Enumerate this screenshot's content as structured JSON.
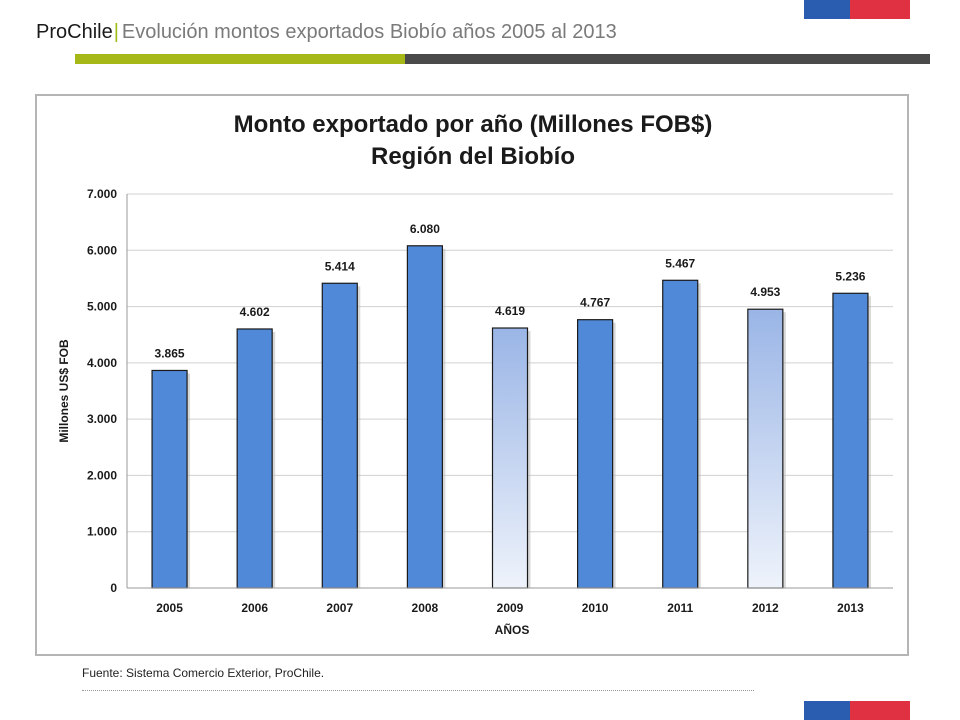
{
  "header": {
    "brand": "ProChile",
    "separator": "|",
    "subtitle": "Evolución montos exportados Biobío años 2005 al 2013"
  },
  "colors": {
    "bar_solid": "#4f89d8",
    "bar_gradient_top": "#9ab5e6",
    "bar_gradient_bottom": "#eef3fb",
    "accent_green": "#a5b817",
    "accent_dark": "#4a4a4a",
    "flag_blue": "#2a5cb0",
    "flag_red": "#e03142"
  },
  "chart_data": {
    "type": "bar",
    "title_line1": "Monto exportado por año (Millones FOB$)",
    "title_line2": "Región del Biobío",
    "xlabel": "AÑOS",
    "ylabel": "Millones US$ FOB",
    "ylim": [
      0,
      7000
    ],
    "yticks": [
      0,
      1000,
      2000,
      3000,
      4000,
      5000,
      6000,
      7000
    ],
    "ytick_labels": [
      "0",
      "1.000",
      "2.000",
      "3.000",
      "4.000",
      "5.000",
      "6.000",
      "7.000"
    ],
    "grid": true,
    "categories": [
      "2005",
      "2006",
      "2007",
      "2008",
      "2009",
      "2010",
      "2011",
      "2012",
      "2013"
    ],
    "values": [
      3865,
      4602,
      5414,
      6080,
      4619,
      4767,
      5467,
      4953,
      5236
    ],
    "value_labels": [
      "3.865",
      "4.602",
      "5.414",
      "6.080",
      "4.619",
      "4.767",
      "5.467",
      "4.953",
      "5.236"
    ],
    "bar_styles": [
      "solid",
      "solid",
      "solid",
      "solid",
      "gradient",
      "solid",
      "solid",
      "gradient",
      "solid"
    ]
  },
  "footer": {
    "source": "Fuente: Sistema Comercio Exterior, ProChile."
  }
}
